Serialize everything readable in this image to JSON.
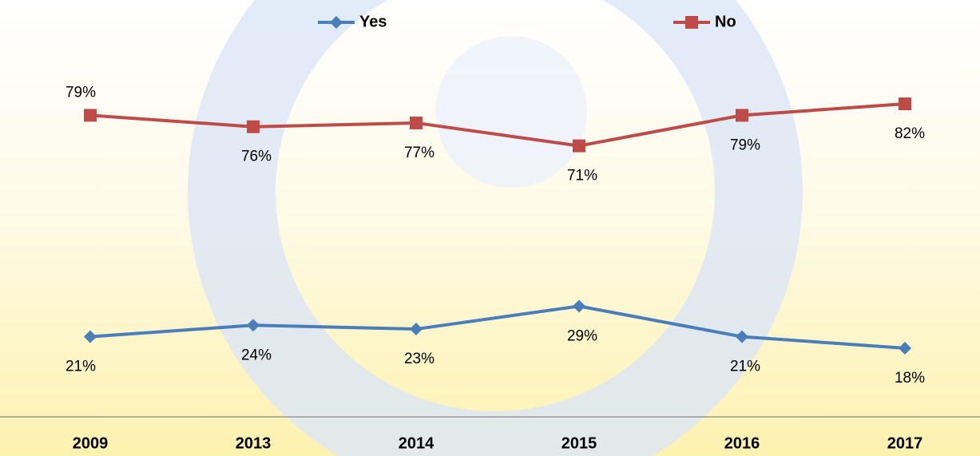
{
  "chart_data": {
    "type": "line",
    "categories": [
      "2009",
      "2013",
      "2014",
      "2015",
      "2016",
      "2017"
    ],
    "series": [
      {
        "name": "Yes",
        "color": "#4a7ebb",
        "marker": "diamond",
        "values": [
          21,
          24,
          23,
          29,
          21,
          18
        ],
        "value_labels": [
          "21%",
          "24%",
          "23%",
          "29%",
          "21%",
          "18%"
        ]
      },
      {
        "name": "No",
        "color": "#be4b48",
        "marker": "square",
        "values": [
          79,
          76,
          77,
          71,
          79,
          82
        ],
        "value_labels": [
          "79%",
          "76%",
          "77%",
          "71%",
          "79%",
          "82%"
        ]
      }
    ],
    "ylim": [
      0,
      100
    ],
    "legend": "top"
  }
}
